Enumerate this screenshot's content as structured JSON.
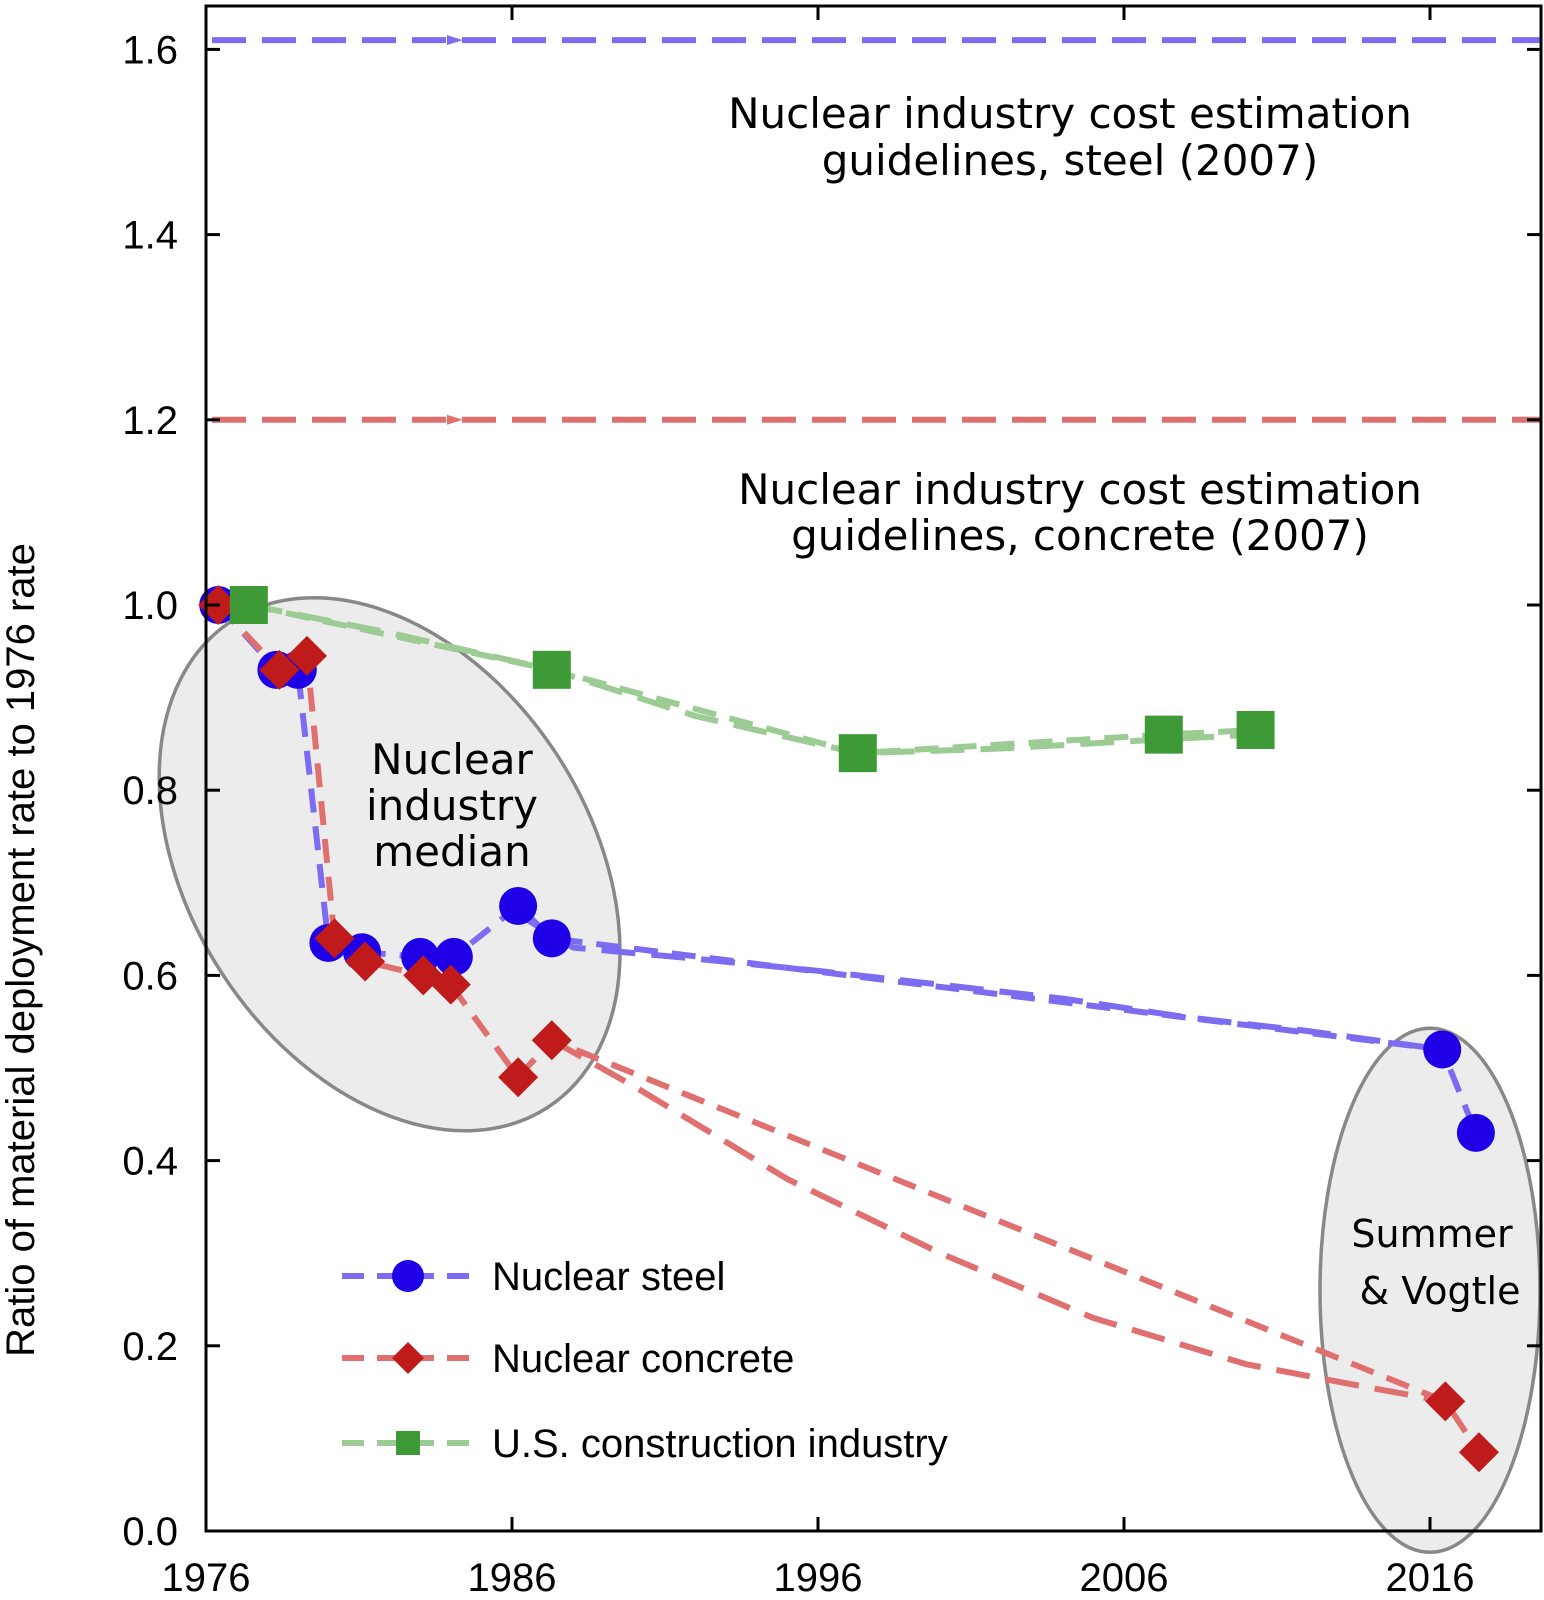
{
  "chart_data": {
    "type": "line",
    "title": "",
    "xlabel": "",
    "ylabel": "Ratio of material deployment rate to 1976 rate",
    "xlim": [
      1976,
      2019.5
    ],
    "ylim": [
      0,
      1.65
    ],
    "x_ticks": [
      "1976",
      "1986",
      "1996",
      "2006",
      "2016"
    ],
    "y_ticks": [
      "0.0",
      "0.2",
      "0.4",
      "0.6",
      "0.8",
      "1.0",
      "1.2",
      "1.4",
      "1.6"
    ],
    "grid": false,
    "legend_position": "bottom-left",
    "series": [
      {
        "name": "Nuclear steel",
        "color": "#1f00e6",
        "line_color": "#7b6cf0",
        "marker": "circle",
        "x": [
          1976.4,
          1978.3,
          1979.0,
          1980.0,
          1981.1,
          1983.0,
          1984.1,
          1986.2,
          1987.3,
          2016.4,
          2017.5
        ],
        "y": [
          1.0,
          0.93,
          0.93,
          0.635,
          0.625,
          0.62,
          0.62,
          0.675,
          0.64,
          0.52,
          0.43
        ],
        "trend": {
          "x": [
            1986.0,
            1988,
            1992,
            1996,
            2000,
            2004,
            2008,
            2012,
            2016.4
          ],
          "y": [
            0.67,
            0.63,
            0.618,
            0.605,
            0.59,
            0.575,
            0.555,
            0.54,
            0.52
          ]
        }
      },
      {
        "name": "Nuclear concrete",
        "color": "#c01b1b",
        "line_color": "#e07070",
        "marker": "diamond",
        "x": [
          1976.4,
          1978.4,
          1979.3,
          1980.2,
          1981.2,
          1983.1,
          1984.0,
          1986.2,
          1987.3,
          2016.5,
          2017.6
        ],
        "y": [
          1.0,
          0.93,
          0.945,
          0.64,
          0.615,
          0.6,
          0.59,
          0.49,
          0.53,
          0.14,
          0.085
        ],
        "trend": {
          "x": [
            1987.3,
            1990,
            1995,
            2000,
            2005,
            2010,
            2014,
            2016.5
          ],
          "y": [
            0.53,
            0.48,
            0.38,
            0.3,
            0.23,
            0.18,
            0.155,
            0.14
          ]
        }
      },
      {
        "name": "U.S. construction industry",
        "color": "#3e9a36",
        "line_color": "#9ccc94",
        "marker": "square",
        "x": [
          1977.4,
          1987.3,
          1997.3,
          2007.3,
          2010.3
        ],
        "y": [
          1.0,
          0.93,
          0.84,
          0.86,
          0.865
        ],
        "trend": {
          "x": [
            1977.4,
            1982,
            1987.3,
            1992,
            1997.3,
            2002,
            2007.3,
            2010.3
          ],
          "y": [
            1.0,
            0.97,
            0.93,
            0.88,
            0.84,
            0.845,
            0.855,
            0.86
          ]
        }
      }
    ],
    "reference_lines": [
      {
        "label": "Nuclear industry cost estimation guidelines, steel (2007)",
        "line1": "Nuclear industry cost estimation",
        "line2": "guidelines, steel (2007)",
        "y": 1.61,
        "color": "#7b6cf0"
      },
      {
        "label": "Nuclear industry cost estimation guidelines, concrete (2007)",
        "line1": "Nuclear industry cost estimation",
        "line2": "guidelines, concrete (2007)",
        "y": 1.2,
        "color": "#e07070"
      }
    ],
    "annotations": [
      {
        "lines": [
          "Nuclear",
          "industry",
          "median"
        ]
      },
      {
        "lines": [
          "Summer",
          "& Vogtle"
        ]
      }
    ]
  }
}
